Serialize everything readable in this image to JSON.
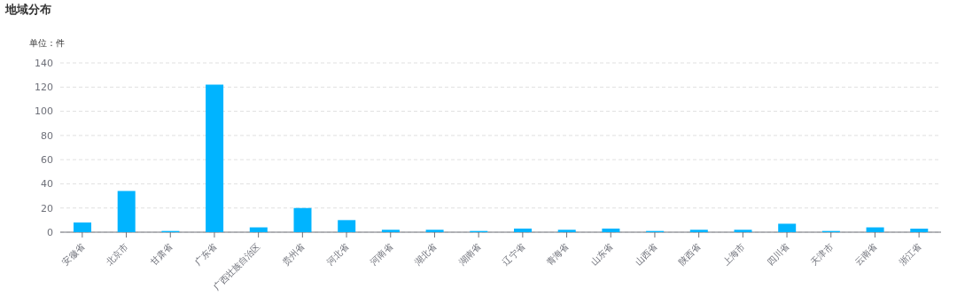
{
  "chart_data": {
    "type": "bar",
    "title": "地域分布",
    "ylabel": "单位：件",
    "categories": [
      "安徽省",
      "北京市",
      "甘肃省",
      "广东省",
      "广西壮族自治区",
      "贵州省",
      "河北省",
      "河南省",
      "湖北省",
      "湖南省",
      "辽宁省",
      "青海省",
      "山东省",
      "山西省",
      "陕西省",
      "上海市",
      "四川省",
      "天津市",
      "云南省",
      "浙江省"
    ],
    "values": [
      8,
      34,
      1,
      122,
      4,
      20,
      10,
      2,
      2,
      1,
      3,
      2,
      3,
      1,
      2,
      2,
      7,
      1,
      4,
      3
    ],
    "color": "#00b4ff",
    "ylim": [
      0,
      140
    ],
    "yticks": [
      0,
      20,
      40,
      60,
      80,
      100,
      120,
      140
    ],
    "grid": "y"
  }
}
